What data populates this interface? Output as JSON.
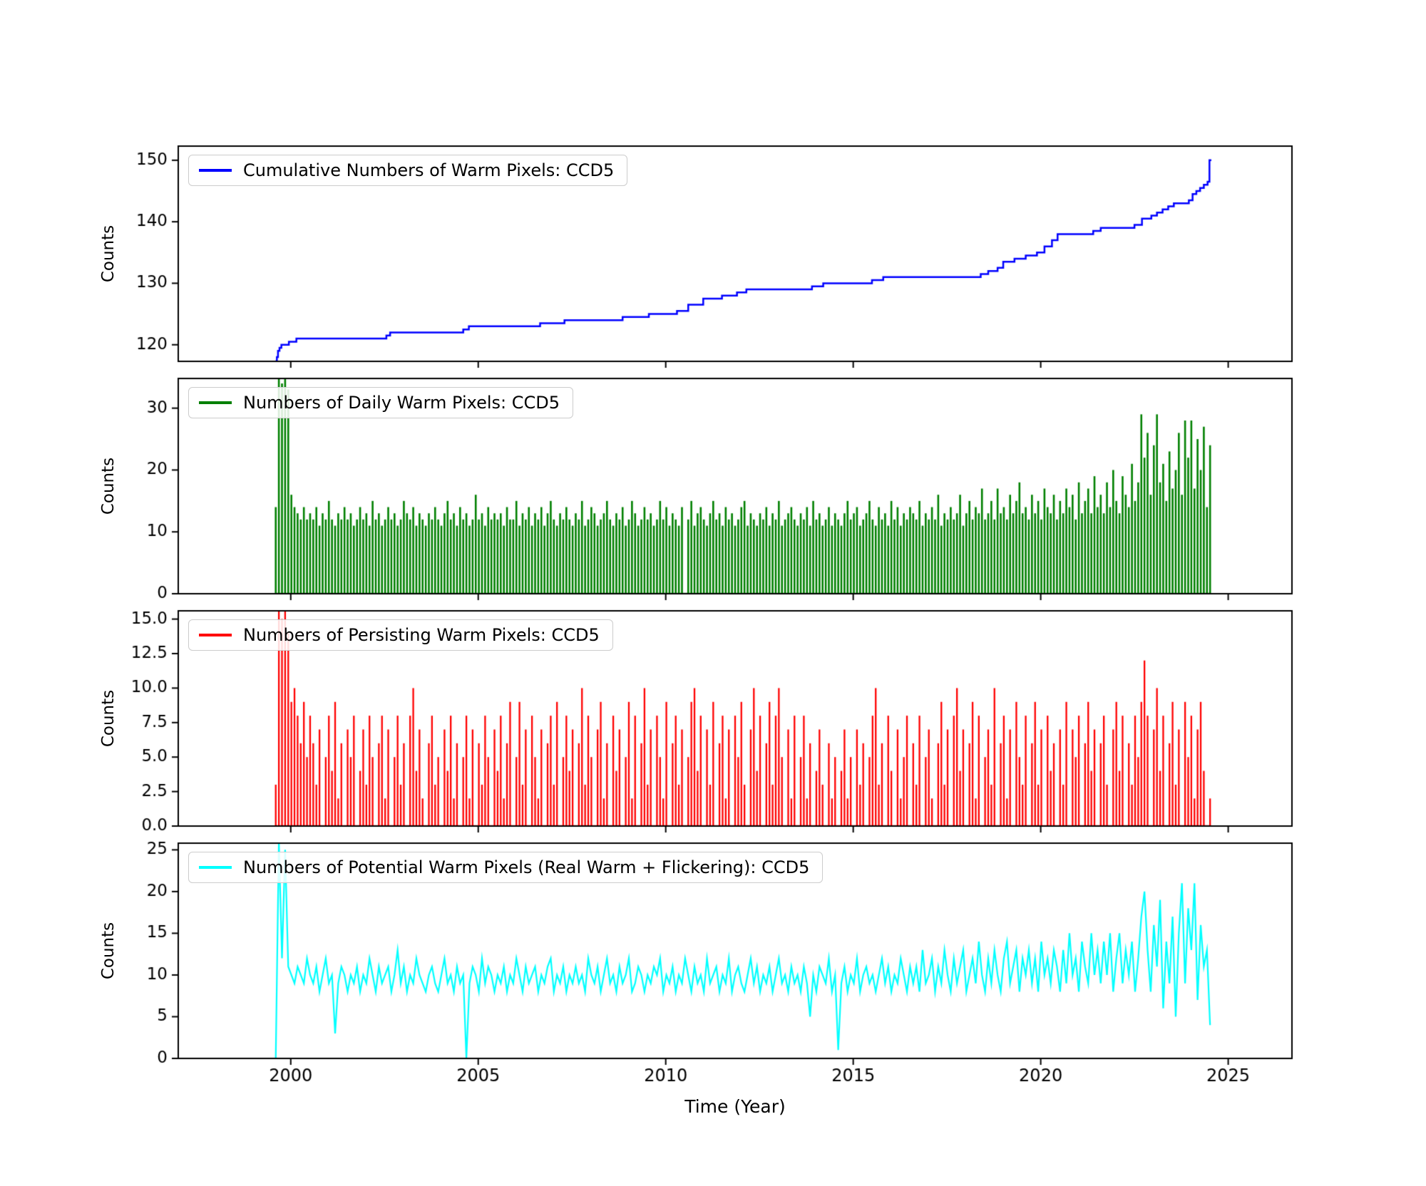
{
  "xlabel": "Time (Year)",
  "xlim": [
    1997.0,
    2026.7
  ],
  "xticks": [
    2000,
    2005,
    2010,
    2015,
    2020,
    2025
  ],
  "xtick_labels": [
    "2000",
    "2005",
    "2010",
    "2015",
    "2020",
    "2025"
  ],
  "chart_data": {
    "type": "line",
    "note": "four stacked time-series subplots sharing the x axis; see panels"
  },
  "panels": [
    {
      "legend": "Cumulative Numbers of Warm Pixels: CCD5",
      "ylabel": "Counts",
      "color": "#0000ff",
      "type": "step",
      "lw": 2.5,
      "ylim": [
        117.3,
        152.3
      ],
      "yticks": [
        120,
        130,
        140,
        150
      ],
      "ytick_labels": [
        "120",
        "130",
        "140",
        "150"
      ],
      "points": [
        [
          1999.6,
          117.4
        ],
        [
          1999.63,
          118
        ],
        [
          1999.66,
          119
        ],
        [
          1999.7,
          119.5
        ],
        [
          1999.75,
          120
        ],
        [
          1999.95,
          120.5
        ],
        [
          2000.15,
          121
        ],
        [
          2002.55,
          121.5
        ],
        [
          2002.65,
          122
        ],
        [
          2004.6,
          122.5
        ],
        [
          2004.75,
          123
        ],
        [
          2006.65,
          123.5
        ],
        [
          2007.3,
          124
        ],
        [
          2008.85,
          124.5
        ],
        [
          2009.55,
          125
        ],
        [
          2010.3,
          125.5
        ],
        [
          2010.6,
          126.5
        ],
        [
          2011.0,
          127.5
        ],
        [
          2011.5,
          128
        ],
        [
          2011.9,
          128.5
        ],
        [
          2012.15,
          129
        ],
        [
          2013.9,
          129.5
        ],
        [
          2014.2,
          130
        ],
        [
          2015.5,
          130.5
        ],
        [
          2015.8,
          131
        ],
        [
          2018.4,
          131.5
        ],
        [
          2018.6,
          132
        ],
        [
          2018.85,
          132.5
        ],
        [
          2019.0,
          133.5
        ],
        [
          2019.3,
          134
        ],
        [
          2019.6,
          134.5
        ],
        [
          2019.9,
          135
        ],
        [
          2020.1,
          136
        ],
        [
          2020.3,
          137
        ],
        [
          2020.45,
          138
        ],
        [
          2021.4,
          138.5
        ],
        [
          2021.6,
          139
        ],
        [
          2022.5,
          139.5
        ],
        [
          2022.7,
          140.5
        ],
        [
          2022.95,
          141
        ],
        [
          2023.1,
          141.5
        ],
        [
          2023.25,
          142
        ],
        [
          2023.4,
          142.5
        ],
        [
          2023.55,
          143
        ],
        [
          2023.95,
          143.5
        ],
        [
          2024.05,
          144.5
        ],
        [
          2024.15,
          145
        ],
        [
          2024.25,
          145.5
        ],
        [
          2024.35,
          146
        ],
        [
          2024.45,
          146.5
        ],
        [
          2024.5,
          150
        ],
        [
          2024.55,
          150
        ]
      ]
    },
    {
      "legend": "Numbers of Daily Warm Pixels: CCD5",
      "ylabel": "Counts",
      "color": "#008000",
      "type": "spikes",
      "lw": 2.6,
      "ylim": [
        0,
        34.8
      ],
      "yticks": [
        0,
        10,
        20,
        30
      ],
      "ytick_labels": [
        "0",
        "10",
        "20",
        "30"
      ],
      "x_start": 1999.6,
      "x_step": 0.083333,
      "values": [
        14,
        35,
        34,
        35,
        33,
        16,
        14,
        13,
        12,
        14,
        12,
        13,
        12,
        14,
        11,
        13,
        12,
        15,
        12,
        11,
        13,
        12,
        14,
        12,
        13,
        11,
        12,
        14,
        12,
        13,
        11,
        15,
        12,
        13,
        11,
        12,
        14,
        12,
        13,
        11,
        12,
        15,
        13,
        12,
        14,
        11,
        13,
        12,
        11,
        13,
        12,
        14,
        12,
        11,
        13,
        15,
        12,
        13,
        11,
        14,
        12,
        13,
        11,
        12,
        16,
        12,
        13,
        11,
        14,
        12,
        13,
        12,
        13,
        11,
        14,
        12,
        12,
        15,
        11,
        13,
        12,
        14,
        11,
        13,
        12,
        14,
        11,
        13,
        15,
        12,
        11,
        13,
        12,
        14,
        12,
        11,
        13,
        12,
        15,
        11,
        12,
        14,
        13,
        11,
        12,
        13,
        15,
        12,
        11,
        13,
        12,
        14,
        11,
        12,
        15,
        13,
        11,
        12,
        14,
        12,
        13,
        11,
        12,
        15,
        12,
        14,
        11,
        13,
        12,
        11,
        14,
        0,
        12,
        15,
        11,
        13,
        14,
        12,
        11,
        13,
        15,
        12,
        13,
        11,
        14,
        12,
        13,
        11,
        12,
        14,
        15,
        11,
        13,
        12,
        11,
        13,
        12,
        14,
        11,
        13,
        12,
        15,
        11,
        12,
        13,
        14,
        12,
        11,
        13,
        12,
        14,
        11,
        15,
        12,
        13,
        11,
        12,
        14,
        11,
        13,
        12,
        11,
        13,
        15,
        12,
        13,
        14,
        11,
        12,
        13,
        15,
        12,
        11,
        14,
        12,
        13,
        11,
        15,
        12,
        14,
        11,
        13,
        12,
        14,
        13,
        12,
        15,
        11,
        13,
        12,
        14,
        12,
        16,
        11,
        13,
        12,
        14,
        12,
        13,
        16,
        11,
        13,
        15,
        12,
        14,
        13,
        17,
        12,
        13,
        15,
        12,
        17,
        13,
        14,
        12,
        16,
        13,
        15,
        18,
        13,
        14,
        12,
        16,
        13,
        15,
        12,
        17,
        14,
        13,
        16,
        12,
        15,
        13,
        17,
        14,
        16,
        12,
        18,
        13,
        15,
        17,
        13,
        19,
        14,
        16,
        13,
        18,
        14,
        20,
        15,
        13,
        19,
        16,
        14,
        21,
        15,
        18,
        29,
        22,
        26,
        16,
        24,
        29,
        18,
        21,
        15,
        23,
        17,
        20,
        26,
        16,
        28,
        22,
        28,
        17,
        25,
        20,
        27,
        14,
        24
      ]
    },
    {
      "legend": "Numbers of Persisting Warm Pixels: CCD5",
      "ylabel": "Counts",
      "color": "#ff0000",
      "type": "spikes",
      "lw": 2.3,
      "ylim": [
        0,
        15.6
      ],
      "yticks": [
        0,
        2.5,
        5,
        7.5,
        10,
        12.5,
        15
      ],
      "ytick_labels": [
        "0.0",
        "2.5",
        "5.0",
        "7.5",
        "10.0",
        "12.5",
        "15.0"
      ],
      "x_start": 1999.6,
      "x_step": 0.083333,
      "values": [
        3,
        16,
        15,
        16,
        14,
        9,
        10,
        8,
        6,
        9,
        5,
        8,
        6,
        3,
        7,
        0,
        5,
        8,
        4,
        9,
        2,
        6,
        0,
        7,
        5,
        8,
        0,
        4,
        7,
        3,
        8,
        5,
        0,
        6,
        8,
        2,
        7,
        0,
        5,
        8,
        3,
        6,
        0,
        8,
        10,
        4,
        7,
        2,
        0,
        6,
        8,
        3,
        5,
        0,
        7,
        4,
        8,
        2,
        6,
        0,
        5,
        8,
        2,
        7,
        0,
        6,
        3,
        8,
        5,
        0,
        7,
        4,
        8,
        2,
        6,
        9,
        0,
        5,
        9,
        3,
        7,
        0,
        8,
        5,
        2,
        7,
        0,
        6,
        8,
        3,
        9,
        0,
        5,
        8,
        4,
        7,
        0,
        6,
        10,
        3,
        8,
        5,
        0,
        7,
        9,
        2,
        6,
        0,
        8,
        4,
        7,
        0,
        5,
        9,
        2,
        8,
        0,
        6,
        10,
        3,
        7,
        0,
        8,
        5,
        2,
        9,
        0,
        6,
        8,
        3,
        7,
        0,
        5,
        9,
        10,
        4,
        8,
        0,
        7,
        3,
        9,
        0,
        6,
        8,
        2,
        7,
        0,
        8,
        5,
        9,
        3,
        0,
        7,
        10,
        4,
        8,
        0,
        6,
        9,
        3,
        8,
        10,
        5,
        0,
        7,
        2,
        8,
        0,
        5,
        8,
        2,
        6,
        0,
        4,
        7,
        3,
        0,
        6,
        2,
        5,
        0,
        4,
        7,
        2,
        5,
        0,
        7,
        3,
        6,
        0,
        5,
        8,
        10,
        3,
        6,
        0,
        8,
        4,
        0,
        7,
        2,
        5,
        8,
        0,
        6,
        3,
        8,
        0,
        5,
        7,
        2,
        0,
        6,
        9,
        3,
        7,
        0,
        8,
        10,
        4,
        7,
        0,
        6,
        9,
        2,
        8,
        0,
        5,
        7,
        3,
        10,
        0,
        6,
        8,
        2,
        7,
        0,
        9,
        5,
        3,
        8,
        0,
        6,
        9,
        3,
        7,
        0,
        8,
        4,
        6,
        0,
        7,
        3,
        9,
        0,
        7,
        5,
        8,
        0,
        6,
        9,
        4,
        7,
        0,
        6,
        8,
        3,
        0,
        7,
        9,
        4,
        8,
        0,
        6,
        3,
        8,
        5,
        9,
        12,
        8,
        0,
        7,
        10,
        4,
        8,
        0,
        6,
        9,
        3,
        7,
        0,
        9,
        5,
        8,
        2,
        7,
        9,
        4,
        0,
        2
      ]
    },
    {
      "legend": "Numbers of Potential Warm Pixels (Real Warm + Flickering): CCD5",
      "ylabel": "Counts",
      "color": "#00ffff",
      "type": "line",
      "lw": 2.2,
      "ylim": [
        0,
        25.8
      ],
      "yticks": [
        0,
        5,
        10,
        15,
        20,
        25
      ],
      "ytick_labels": [
        "0",
        "5",
        "10",
        "15",
        "20",
        "25"
      ],
      "x_start": 1999.6,
      "x_step": 0.083333,
      "values": [
        0,
        26,
        12,
        25,
        11,
        10,
        9,
        11,
        10,
        9,
        12,
        10,
        9,
        11,
        8,
        10,
        12,
        9,
        10,
        3,
        9,
        11,
        10,
        8,
        10,
        9,
        11,
        8,
        10,
        9,
        12,
        10,
        8,
        11,
        9,
        10,
        11,
        8,
        10,
        13,
        9,
        11,
        8,
        10,
        9,
        12,
        10,
        9,
        8,
        10,
        11,
        9,
        8,
        10,
        12,
        9,
        10,
        8,
        11,
        9,
        10,
        0,
        9,
        11,
        10,
        8,
        12,
        9,
        11,
        10,
        8,
        10,
        9,
        11,
        8,
        10,
        9,
        12,
        10,
        8,
        11,
        9,
        10,
        11,
        8,
        10,
        9,
        11,
        12,
        8,
        10,
        9,
        11,
        8,
        10,
        9,
        11,
        9,
        10,
        8,
        12,
        10,
        9,
        11,
        8,
        10,
        12,
        9,
        10,
        8,
        11,
        9,
        10,
        12,
        8,
        9,
        11,
        10,
        8,
        10,
        9,
        11,
        10,
        12,
        8,
        10,
        9,
        11,
        8,
        10,
        9,
        12,
        10,
        8,
        11,
        9,
        10,
        8,
        12,
        9,
        10,
        11,
        8,
        10,
        9,
        12,
        8,
        10,
        11,
        9,
        8,
        10,
        12,
        9,
        11,
        8,
        10,
        9,
        11,
        8,
        10,
        12,
        9,
        10,
        8,
        11,
        9,
        10,
        8,
        11,
        9,
        5,
        10,
        8,
        11,
        10,
        9,
        12,
        8,
        10,
        1,
        9,
        11,
        8,
        10,
        9,
        12,
        8,
        10,
        11,
        9,
        10,
        8,
        10,
        12,
        9,
        11,
        8,
        10,
        9,
        12,
        10,
        8,
        11,
        9,
        11,
        8,
        13,
        9,
        10,
        12,
        8,
        11,
        9,
        13,
        10,
        8,
        12,
        9,
        11,
        13,
        8,
        10,
        12,
        9,
        14,
        10,
        8,
        12,
        9,
        13,
        10,
        8,
        12,
        14,
        9,
        11,
        13,
        8,
        12,
        10,
        13,
        9,
        12,
        8,
        14,
        10,
        12,
        9,
        13,
        11,
        8,
        13,
        9,
        15,
        10,
        12,
        8,
        14,
        11,
        9,
        15,
        10,
        13,
        9,
        14,
        10,
        15,
        8,
        12,
        15,
        9,
        13,
        10,
        14,
        8,
        12,
        17,
        20,
        13,
        8,
        16,
        11,
        19,
        6,
        14,
        9,
        17,
        5,
        15,
        21,
        9,
        18,
        13,
        21,
        7,
        16,
        11,
        13,
        4
      ]
    }
  ]
}
